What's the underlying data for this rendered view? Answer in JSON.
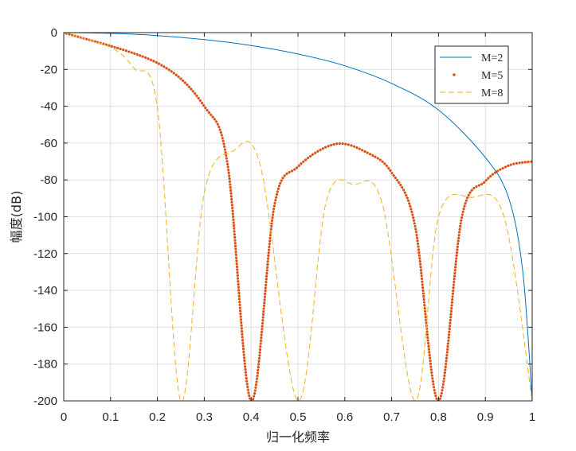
{
  "chart_data": {
    "type": "line",
    "title": "",
    "xlabel": "归一化频率",
    "ylabel": "幅度(dB)",
    "xlim": [
      0,
      1
    ],
    "ylim": [
      -200,
      0
    ],
    "xticks": [
      0,
      0.1,
      0.2,
      0.3,
      0.4,
      0.5,
      0.6,
      0.7,
      0.8,
      0.9,
      1
    ],
    "xtick_labels": [
      "0",
      "0.1",
      "0.2",
      "0.3",
      "0.4",
      "0.5",
      "0.6",
      "0.7",
      "0.8",
      "0.9",
      "1"
    ],
    "yticks": [
      0,
      -20,
      -40,
      -60,
      -80,
      -100,
      -120,
      -140,
      -160,
      -180,
      -200
    ],
    "ytick_labels": [
      "0",
      "-20",
      "-40",
      "-60",
      "-80",
      "-100",
      "-120",
      "-140",
      "-160",
      "-180",
      "-200"
    ],
    "grid": true,
    "legend": {
      "position": "top-right",
      "entries": [
        "M=2",
        "M=5",
        "M=8"
      ]
    },
    "series": [
      {
        "name": "M=2",
        "style": "solid-line",
        "color": "#0072BD",
        "x": [
          0,
          0.1,
          0.2,
          0.3,
          0.4,
          0.5,
          0.6,
          0.7,
          0.8,
          0.9,
          0.95,
          0.98,
          1
        ],
        "y": [
          0,
          -0.4,
          -1.6,
          -3.8,
          -7.0,
          -11.6,
          -18.0,
          -27.6,
          -42.0,
          -67.8,
          -90.0,
          -130.0,
          -200
        ]
      },
      {
        "name": "M=5",
        "style": "dots",
        "color": "#D95319",
        "x": [
          0,
          0.2,
          0.3,
          0.35,
          0.4,
          0.45,
          0.5,
          0.58,
          0.65,
          0.7,
          0.75,
          0.8,
          0.85,
          0.9,
          0.95,
          1
        ],
        "y": [
          0,
          -16.5,
          -40.0,
          -72.0,
          -200,
          -93.5,
          -72.8,
          -60.5,
          -65.5,
          -76.0,
          -105.0,
          -200,
          -100.0,
          -80.7,
          -72.2,
          -70.0
        ]
      },
      {
        "name": "M=8",
        "style": "dashed-line",
        "color": "#EDB120",
        "x": [
          0,
          0.1,
          0.15,
          0.2,
          0.25,
          0.3,
          0.36,
          0.42,
          0.5,
          0.56,
          0.62,
          0.68,
          0.75,
          0.8,
          0.87,
          0.94,
          1
        ],
        "y": [
          0,
          -8.0,
          -19.3,
          -41.0,
          -200,
          -87.0,
          -64.5,
          -72.5,
          -200,
          -92.0,
          -82.5,
          -93.0,
          -200,
          -100.0,
          -89.5,
          -100.0,
          -200
        ]
      }
    ]
  }
}
